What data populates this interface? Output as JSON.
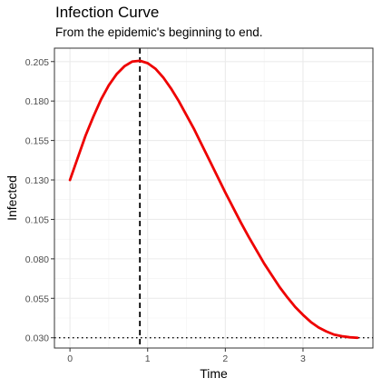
{
  "chart_data": {
    "type": "line",
    "title": "Infection Curve",
    "subtitle": "From the epidemic's beginning to end.",
    "xlabel": "Time",
    "ylabel": "Infected",
    "xlim": [
      -0.2,
      3.9
    ],
    "ylim": [
      0.0235,
      0.2135
    ],
    "x_ticks": [
      0,
      1,
      2,
      3
    ],
    "y_ticks": [
      0.03,
      0.055,
      0.08,
      0.105,
      0.13,
      0.155,
      0.18,
      0.205
    ],
    "y_tick_labels": [
      "0.030",
      "0.055",
      "0.080",
      "0.105",
      "0.130",
      "0.155",
      "0.180",
      "0.205"
    ],
    "x_tick_labels": [
      "0",
      "1",
      "2",
      "3"
    ],
    "grid": true,
    "series": [
      {
        "color": "#ee0000",
        "x": [
          0.0,
          0.1,
          0.2,
          0.3,
          0.4,
          0.5,
          0.6,
          0.7,
          0.8,
          0.9,
          1.0,
          1.1,
          1.2,
          1.3,
          1.4,
          1.5,
          1.6,
          1.7,
          1.8,
          1.9,
          2.0,
          2.1,
          2.2,
          2.3,
          2.4,
          2.5,
          2.6,
          2.7,
          2.8,
          2.9,
          3.0,
          3.1,
          3.2,
          3.3,
          3.4,
          3.5,
          3.6,
          3.7
        ],
        "y": [
          0.13,
          0.144,
          0.158,
          0.17,
          0.181,
          0.19,
          0.197,
          0.202,
          0.205,
          0.2055,
          0.204,
          0.2005,
          0.195,
          0.188,
          0.18,
          0.171,
          0.162,
          0.152,
          0.142,
          0.132,
          0.122,
          0.1125,
          0.103,
          0.094,
          0.0855,
          0.077,
          0.0695,
          0.062,
          0.0555,
          0.0495,
          0.0445,
          0.04,
          0.0365,
          0.034,
          0.032,
          0.031,
          0.0303,
          0.03
        ]
      }
    ],
    "reference_lines": [
      {
        "orientation": "vertical",
        "x": 0.9,
        "style": "dashed",
        "color": "#000000"
      },
      {
        "orientation": "horizontal",
        "y": 0.03,
        "style": "dotted",
        "color": "#000000"
      }
    ]
  }
}
